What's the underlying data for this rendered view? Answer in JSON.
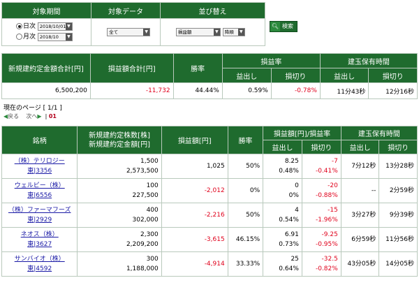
{
  "filter": {
    "headers": [
      "対象期間",
      "対象データ",
      "並び替え"
    ],
    "daily_label": "日次",
    "daily_value": "2018/10/01",
    "monthly_label": "月次",
    "monthly_value": "2018/10",
    "data_select": "全て",
    "sort_select": "損益額",
    "order_select": "降順",
    "search_label": "検索"
  },
  "summary": {
    "headers": {
      "total_amount": "新規建約定金額合計[円]",
      "pnl_total": "損益額合計[円]",
      "win_rate": "勝率",
      "pnl_rate": "損益率",
      "hold_time": "建玉保有時間",
      "profit": "益出し",
      "loss": "損切り",
      "profit2": "益出し",
      "loss2": "損切り"
    },
    "values": {
      "total_amount": "6,500,200",
      "pnl_total": "-11,732",
      "win_rate": "44.44%",
      "profit_rate": "0.59%",
      "loss_rate": "-0.78%",
      "profit_time": "11分43秒",
      "loss_time": "12分16秒"
    }
  },
  "page_info": "現在のページ [ 1/1 ]",
  "pager": {
    "prev": "戻る",
    "next": "次へ",
    "current": "01"
  },
  "table": {
    "headers": {
      "name": "銘柄",
      "qty": "新規建約定株数[株]",
      "amount": "新規建約定金額[円]",
      "pnl": "損益額[円]",
      "win": "勝率",
      "pnl_rate": "損益額[円]/損益率",
      "hold": "建玉保有時間",
      "profit": "益出し",
      "loss": "損切り",
      "profit2": "益出し",
      "loss2": "損切り"
    },
    "rows": [
      {
        "name": "（株）テリロジー",
        "code": "東|3356",
        "qty": "1,500",
        "amount": "2,573,500",
        "pnl": "1,025",
        "win": "50%",
        "profit_amt": "8.25",
        "profit_rate": "0.48%",
        "loss_amt": "-7",
        "loss_rate": "-0.41%",
        "profit_time": "7分12秒",
        "loss_time": "13分28秒"
      },
      {
        "name": "ウェルビー（株）",
        "code": "東|6556",
        "qty": "100",
        "amount": "227,500",
        "pnl": "-2,012",
        "win": "0%",
        "profit_amt": "0",
        "profit_rate": "0%",
        "loss_amt": "-20",
        "loss_rate": "-0.88%",
        "profit_time": "--",
        "loss_time": "2分59秒"
      },
      {
        "name": "（株）ファーマフーズ",
        "code": "東|2929",
        "qty": "400",
        "amount": "302,000",
        "pnl": "-2,216",
        "win": "50%",
        "profit_amt": "4",
        "profit_rate": "0.54%",
        "loss_amt": "-15",
        "loss_rate": "-1.96%",
        "profit_time": "3分27秒",
        "loss_time": "9分39秒"
      },
      {
        "name": "ネオス（株）",
        "code": "東|3627",
        "qty": "2,300",
        "amount": "2,209,200",
        "pnl": "-3,615",
        "win": "46.15%",
        "profit_amt": "6.91",
        "profit_rate": "0.73%",
        "loss_amt": "-9.25",
        "loss_rate": "-0.95%",
        "profit_time": "6分59秒",
        "loss_time": "11分56秒"
      },
      {
        "name": "サンバイオ（株）",
        "code": "東|4592",
        "qty": "300",
        "amount": "1,188,000",
        "pnl": "-4,914",
        "win": "33.33%",
        "profit_amt": "25",
        "profit_rate": "0.64%",
        "loss_amt": "-32.5",
        "loss_rate": "-0.82%",
        "profit_time": "43分05秒",
        "loss_time": "14分05秒"
      }
    ]
  }
}
